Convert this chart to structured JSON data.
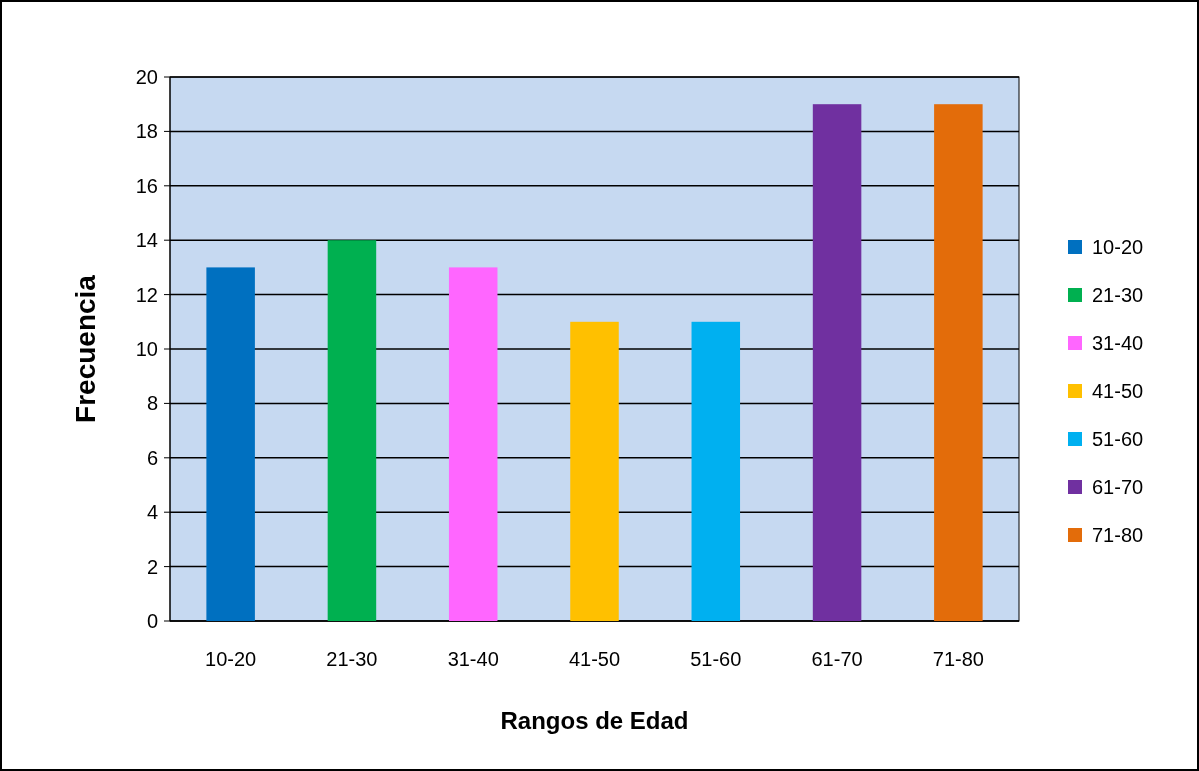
{
  "chart_data": {
    "type": "bar",
    "xlabel": "Rangos de Edad",
    "ylabel": "Frecuencia",
    "categories": [
      "10-20",
      "21-30",
      "31-40",
      "41-50",
      "51-60",
      "61-70",
      "71-80"
    ],
    "series": [
      {
        "name": "10-20",
        "color": "#0070c0",
        "values": [
          13,
          null,
          null,
          null,
          null,
          null,
          null
        ]
      },
      {
        "name": "21-30",
        "color": "#00b050",
        "values": [
          null,
          14,
          null,
          null,
          null,
          null,
          null
        ]
      },
      {
        "name": "31-40",
        "color": "#ff66ff",
        "values": [
          null,
          null,
          13,
          null,
          null,
          null,
          null
        ]
      },
      {
        "name": "41-50",
        "color": "#ffc000",
        "values": [
          null,
          null,
          null,
          11,
          null,
          null,
          null
        ]
      },
      {
        "name": "51-60",
        "color": "#00b0f0",
        "values": [
          null,
          null,
          null,
          null,
          11,
          null,
          null
        ]
      },
      {
        "name": "61-70",
        "color": "#7030a0",
        "values": [
          null,
          null,
          null,
          null,
          null,
          19,
          null
        ]
      },
      {
        "name": "71-80",
        "color": "#e36c0a",
        "values": [
          null,
          null,
          null,
          null,
          null,
          null,
          19
        ]
      }
    ],
    "ylim": [
      0,
      20
    ],
    "yticks": [
      0,
      2,
      4,
      6,
      8,
      10,
      12,
      14,
      16,
      18,
      20
    ],
    "grid": "y",
    "legend": "right"
  }
}
